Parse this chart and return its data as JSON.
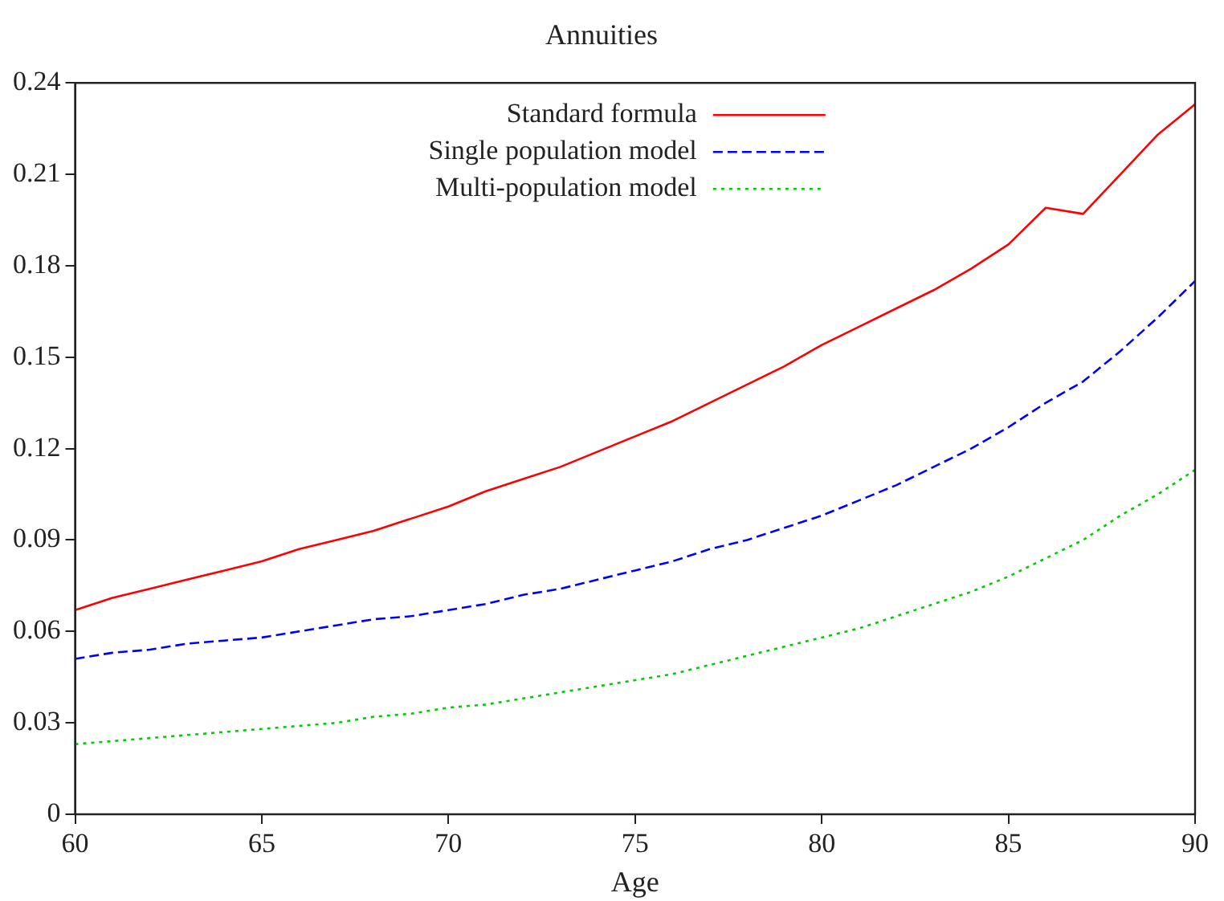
{
  "chart_data": {
    "type": "line",
    "title": "Annuities",
    "xlabel": "Age",
    "x": [
      60,
      61,
      62,
      63,
      64,
      65,
      66,
      67,
      68,
      69,
      70,
      71,
      72,
      73,
      74,
      75,
      76,
      77,
      78,
      79,
      80,
      81,
      82,
      83,
      84,
      85,
      86,
      87,
      88,
      89,
      90
    ],
    "series": [
      {
        "name": "Standard formula",
        "color": "#ff0000",
        "line_style": "solid",
        "values": [
          0.067,
          0.071,
          0.074,
          0.077,
          0.08,
          0.083,
          0.087,
          0.09,
          0.093,
          0.097,
          0.101,
          0.106,
          0.11,
          0.114,
          0.119,
          0.124,
          0.129,
          0.135,
          0.141,
          0.147,
          0.154,
          0.16,
          0.166,
          0.172,
          0.179,
          0.187,
          0.199,
          0.197,
          0.21,
          0.223,
          0.233
        ]
      },
      {
        "name": "Single population model",
        "color": "#0000ff",
        "line_style": "dashed",
        "values": [
          0.051,
          0.053,
          0.054,
          0.056,
          0.057,
          0.058,
          0.06,
          0.062,
          0.064,
          0.065,
          0.067,
          0.069,
          0.072,
          0.074,
          0.077,
          0.08,
          0.083,
          0.087,
          0.09,
          0.094,
          0.098,
          0.103,
          0.108,
          0.114,
          0.12,
          0.127,
          0.135,
          0.142,
          0.152,
          0.163,
          0.175
        ]
      },
      {
        "name": "Multi-population model",
        "color": "#00cc00",
        "line_style": "dotted",
        "values": [
          0.023,
          0.024,
          0.025,
          0.026,
          0.027,
          0.028,
          0.029,
          0.03,
          0.032,
          0.033,
          0.035,
          0.036,
          0.038,
          0.04,
          0.042,
          0.044,
          0.046,
          0.049,
          0.052,
          0.055,
          0.058,
          0.061,
          0.065,
          0.069,
          0.073,
          0.078,
          0.084,
          0.09,
          0.098,
          0.105,
          0.113
        ]
      }
    ],
    "xlim": [
      60,
      90
    ],
    "xticks": [
      60,
      65,
      70,
      75,
      80,
      85,
      90
    ],
    "ylim": [
      0,
      0.24
    ],
    "yticks": [
      0,
      0.03,
      0.06,
      0.09,
      0.12,
      0.15,
      0.18,
      0.21,
      0.24
    ],
    "grid": false,
    "legend": "top",
    "marker": "none"
  }
}
